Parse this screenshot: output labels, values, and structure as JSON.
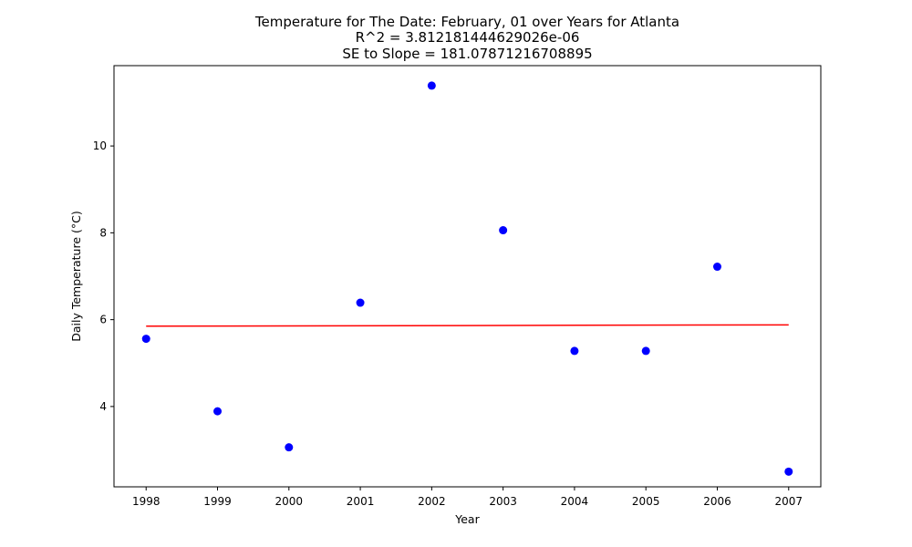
{
  "chart_data": {
    "type": "scatter",
    "title_lines": [
      "Temperature for The Date: February, 01 over Years for Atlanta",
      "R^2 = 3.812181444629026e-06",
      "SE to Slope = 181.07871216708895"
    ],
    "xlabel": "Year",
    "ylabel": "Daily Temperature (°C)",
    "xlim": [
      1997.55,
      2007.45
    ],
    "ylim": [
      2.15,
      11.85
    ],
    "x_ticks": [
      1998,
      1999,
      2000,
      2001,
      2002,
      2003,
      2004,
      2005,
      2006,
      2007
    ],
    "y_ticks": [
      4,
      6,
      8,
      10
    ],
    "grid": false,
    "series": [
      {
        "type": "scatter",
        "color": "#0000ff",
        "x": [
          1998,
          1999,
          2000,
          2001,
          2002,
          2003,
          2004,
          2005,
          2006,
          2007
        ],
        "y": [
          5.56,
          3.89,
          3.06,
          6.39,
          11.39,
          8.06,
          5.28,
          5.28,
          7.22,
          2.5
        ]
      },
      {
        "type": "line",
        "color": "#ff0000",
        "x": [
          1998,
          2007
        ],
        "y": [
          5.85,
          5.88
        ]
      }
    ]
  }
}
